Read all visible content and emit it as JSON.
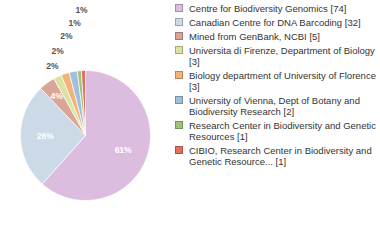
{
  "chart_data": {
    "type": "pie",
    "categories": [
      "Centre for Biodiversity Genomics [74]",
      "Canadian Centre for DNA Barcoding [32]",
      "Mined from GenBank, NCBI [5]",
      "Universita di Firenze, Department of Biology [3]",
      "Biology department of University of Florence [3]",
      "University of Vienna, Dept of Botany and Biodiversity Research [2]",
      "Research Center in Biodiversity and Genetic Resources [1]",
      "CIBIO, Research Center in Biodiversity and Genetic Resource... [1]"
    ],
    "values": [
      61,
      26,
      4,
      2,
      2,
      2,
      1,
      1
    ],
    "value_labels": [
      "61%",
      "26%",
      "4%",
      "2%",
      "2%",
      "2%",
      "1%",
      "1%"
    ],
    "colors": [
      "#ddbddf",
      "#ccdae7",
      "#d9a597",
      "#dbe2a2",
      "#f2b37a",
      "#a2bfd9",
      "#9cc47b",
      "#e0705e"
    ],
    "data_labels": true,
    "legend": "right"
  }
}
